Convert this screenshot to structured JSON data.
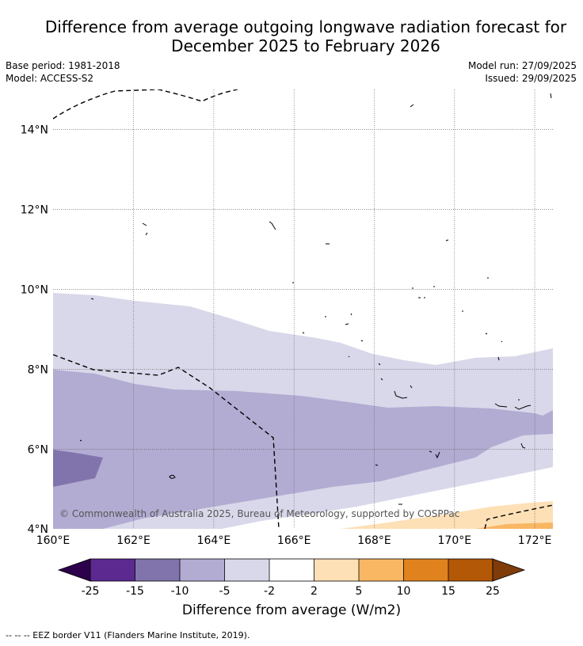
{
  "title_line1": "Difference from average outgoing longwave radiation forecast for",
  "title_line2": "December 2025 to February 2026",
  "base_period": "Base period: 1981-2018",
  "model": "Model: ACCESS-S2",
  "model_run": "Model run: 27/09/2025",
  "issued": "Issued: 29/09/2025",
  "copyright": "© Commonwealth of Australia 2025, Bureau of Meteorology, supported by COSPPac",
  "footer_note": "-- -- -- EEZ border V11 (Flanders Marine Institute, 2019).",
  "colorbar_title": "Difference from average (W/m2)",
  "chart_data": {
    "type": "map",
    "lon_range": [
      160,
      172.5
    ],
    "lat_range": [
      4,
      15
    ],
    "lon_ticks": [
      "160°E",
      "162°E",
      "164°E",
      "166°E",
      "168°E",
      "170°E",
      "172°E"
    ],
    "lat_ticks": [
      "4°N",
      "6°N",
      "8°N",
      "10°N",
      "12°N",
      "14°N"
    ],
    "colorbar": {
      "ticks": [
        "-25",
        "-15",
        "-10",
        "-5",
        "-2",
        "2",
        "5",
        "10",
        "15",
        "25"
      ],
      "colors": [
        "#5b2990",
        "#8174ac",
        "#b2abd2",
        "#d8d8ea",
        "#ffffff",
        "#fde0b6",
        "#f9b663",
        "#e0821d",
        "#b35806"
      ],
      "under_color": "#2d004b",
      "over_color": "#7f3b08"
    }
  }
}
